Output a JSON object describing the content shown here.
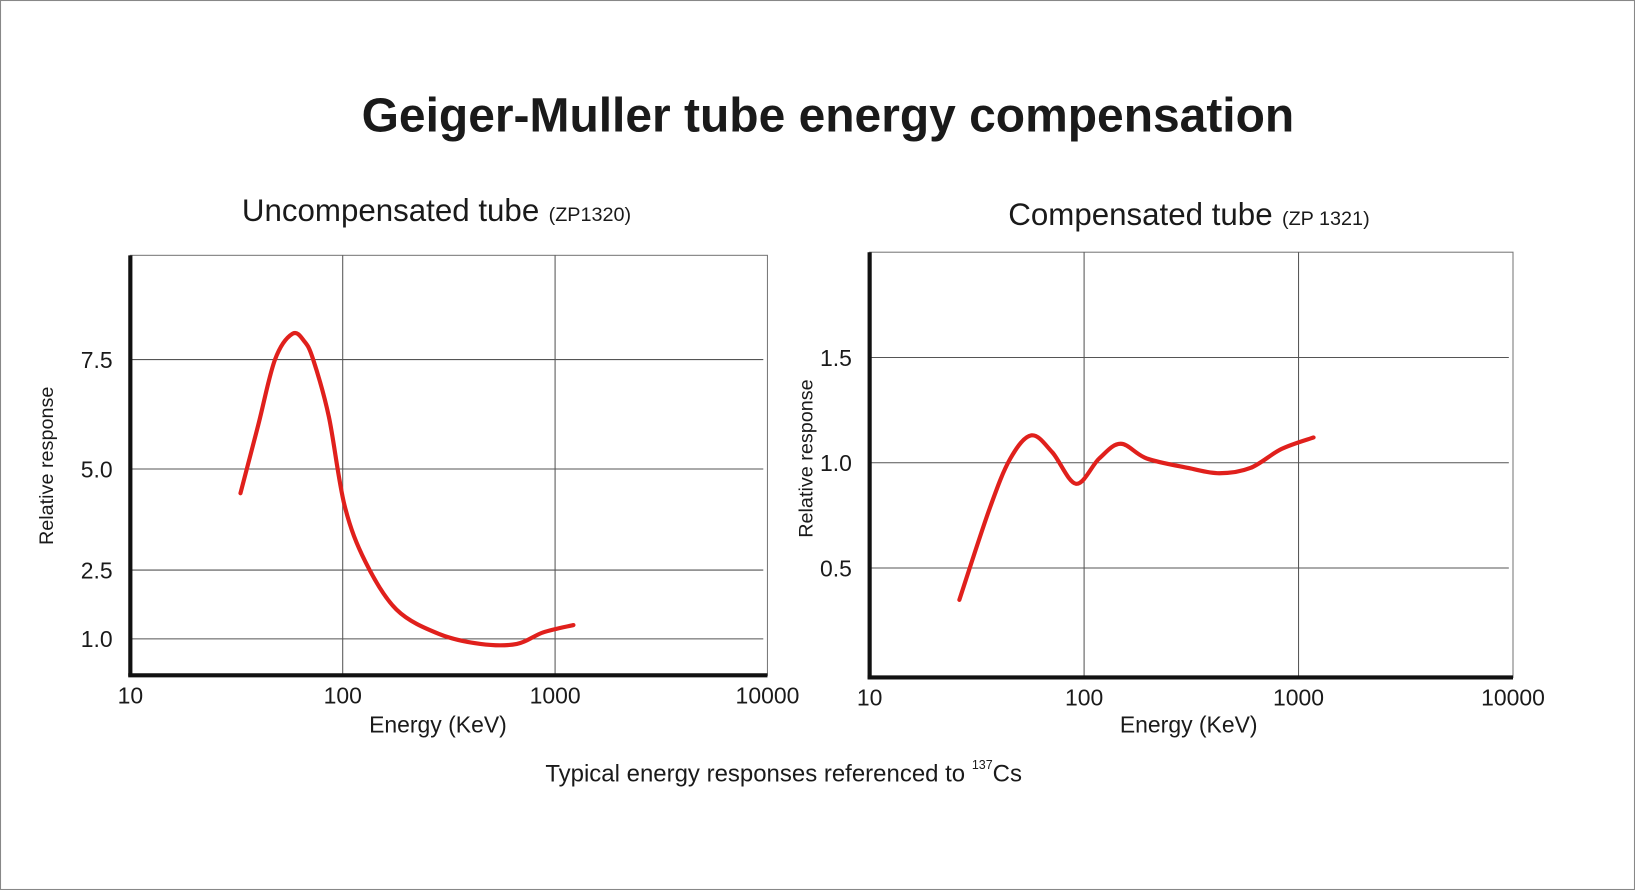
{
  "title": "Geiger-Muller tube energy compensation",
  "caption": {
    "text": "Typical energy responses referenced to ",
    "isotope_mass": "137",
    "isotope": "Cs"
  },
  "colors": {
    "curve": "#e0201c",
    "grid": "#555555",
    "axis": "#111111",
    "border": "#888888"
  },
  "chart_data": [
    {
      "type": "line",
      "title": "Uncompensated tube",
      "title_note": "(ZP1320)",
      "xlabel": "Energy (KeV)",
      "ylabel": "Relative response",
      "xscale": "log",
      "xlim": [
        10,
        10000
      ],
      "x_ticks": [
        10,
        100,
        1000,
        10000
      ],
      "x_tick_labels": [
        "10",
        "100",
        "1000",
        "10000"
      ],
      "y_ticks": [
        1.0,
        2.5,
        5.0,
        7.5
      ],
      "y_tick_labels": [
        "1.0",
        "2.5",
        "5.0",
        "7.5"
      ],
      "grid": true,
      "series": [
        {
          "name": "ZP1320",
          "x": [
            33,
            40,
            48,
            58,
            66,
            72.6,
            86,
            102,
            128,
            179,
            283,
            445,
            661,
            878,
            1220
          ],
          "y": [
            4.4,
            6.0,
            7.5,
            8.07,
            7.9,
            7.5,
            6.2,
            4.1,
            2.7,
            1.64,
            1.11,
            0.93,
            0.93,
            1.14,
            1.3
          ]
        }
      ]
    },
    {
      "type": "line",
      "title": "Compensated tube",
      "title_note": "(ZP 1321)",
      "xlabel": "Energy (KeV)",
      "ylabel": "Relative response",
      "xscale": "log",
      "xlim": [
        10,
        10000
      ],
      "ylim": [
        0,
        2.0
      ],
      "x_ticks": [
        10,
        100,
        1000,
        10000
      ],
      "x_tick_labels": [
        "10",
        "100",
        "1000",
        "10000"
      ],
      "y_ticks": [
        0.5,
        1.0,
        1.5
      ],
      "y_tick_labels": [
        "0.5",
        "1.0",
        "1.5"
      ],
      "grid": true,
      "series": [
        {
          "name": "ZP 1321",
          "x": [
            26.2,
            36.2,
            45.3,
            56.8,
            71,
            91.8,
            117.6,
            148,
            196,
            306,
            427,
            596,
            832,
            1175
          ],
          "y": [
            0.35,
            0.78,
            1.02,
            1.13,
            1.05,
            0.9,
            1.02,
            1.09,
            1.02,
            0.975,
            0.95,
            0.975,
            1.065,
            1.12
          ]
        }
      ]
    }
  ]
}
